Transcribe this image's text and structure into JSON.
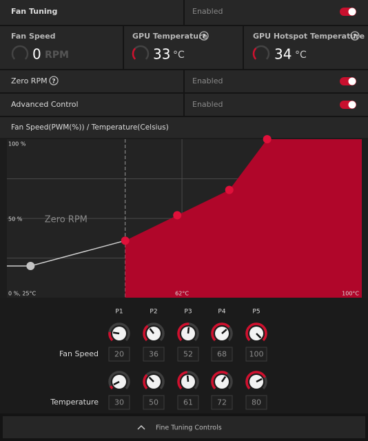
{
  "fan_tuning": {
    "label": "Fan Tuning",
    "status": "Enabled"
  },
  "metrics": [
    {
      "label": "Fan Speed",
      "value": 0,
      "unit": "RPM"
    },
    {
      "label": "GPU Temperature",
      "value": 33,
      "unit": "°C"
    },
    {
      "label": "GPU Hotspot Temperature",
      "value": 34,
      "unit": "°C"
    }
  ],
  "zero_rpm": {
    "label": "Zero RPM",
    "status": "Enabled"
  },
  "advanced_control": {
    "label": "Advanced Control",
    "status": "Enabled"
  },
  "fan_curve": {
    "title": "Fan Speed(PWM(%)) / Temperature(Celsius)",
    "xlim": [
      25,
      100
    ],
    "ylim": [
      0,
      100
    ],
    "yticks": [
      {
        "value": 100,
        "label": "100 %"
      },
      {
        "value": 50,
        "label": "50 %"
      }
    ],
    "ygrid": [
      25,
      50,
      75
    ],
    "xticks": [
      {
        "value": 62,
        "label": "62°C"
      },
      {
        "value": 100,
        "label": "100°C"
      }
    ],
    "origin_label": "0 %, 25°C",
    "zero_rpm_label": "Zero RPM",
    "grid": true,
    "color": "#b0062a"
  },
  "controls": {
    "points": [
      "P1",
      "P2",
      "P3",
      "P4",
      "P5"
    ],
    "fan_speed": {
      "label": "Fan Speed",
      "values": [
        20,
        36,
        52,
        68,
        100
      ]
    },
    "temperature": {
      "label": "Temperature",
      "values": [
        30,
        50,
        61,
        72,
        80
      ]
    }
  },
  "footer": "Fine Tuning Controls"
}
